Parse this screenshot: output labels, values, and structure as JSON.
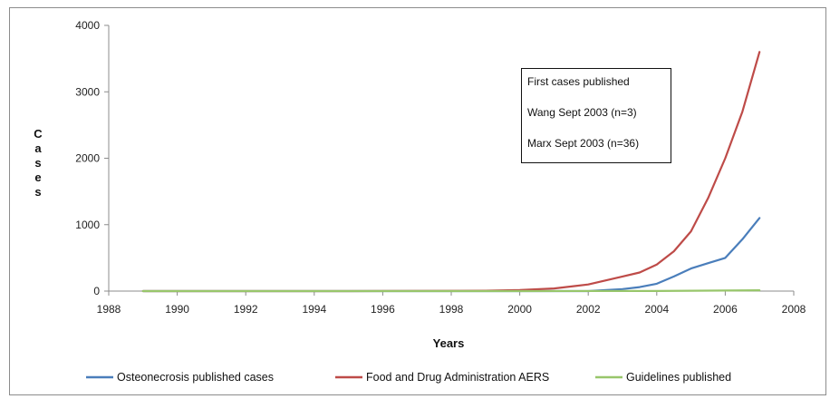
{
  "chart_data": {
    "type": "line",
    "title": "",
    "xlabel": "Years",
    "ylabel": "Cases",
    "xlim": [
      1988,
      2008
    ],
    "ylim": [
      0,
      4000
    ],
    "x_ticks": [
      1988,
      1990,
      1992,
      1994,
      1996,
      1998,
      2000,
      2002,
      2004,
      2006,
      2008
    ],
    "y_ticks": [
      0,
      1000,
      2000,
      3000,
      4000
    ],
    "grid": false,
    "legend_position": "bottom",
    "series": [
      {
        "name": "Osteonecrosis published cases",
        "color": "#4a7ebb",
        "x": [
          1989,
          1995,
          2000,
          2002,
          2003,
          2003.5,
          2004,
          2004.5,
          2005,
          2005.5,
          2006,
          2006.5,
          2007
        ],
        "y": [
          0,
          0,
          0,
          0,
          30,
          60,
          110,
          220,
          340,
          420,
          500,
          780,
          1100
        ]
      },
      {
        "name": "Food and Drug Administration AERS",
        "color": "#be4b48",
        "x": [
          1989,
          1995,
          1999,
          2000,
          2001,
          2002,
          2003,
          2003.5,
          2004,
          2004.5,
          2005,
          2005.5,
          2006,
          2006.5,
          2007
        ],
        "y": [
          0,
          0,
          5,
          15,
          40,
          100,
          220,
          280,
          400,
          600,
          900,
          1400,
          2000,
          2700,
          3600
        ]
      },
      {
        "name": "Guidelines published",
        "color": "#98c66b",
        "x": [
          1989,
          2000,
          2004,
          2005,
          2006,
          2007
        ],
        "y": [
          0,
          0,
          2,
          5,
          8,
          12
        ]
      }
    ],
    "annotation": {
      "lines": [
        "First cases published",
        "Wang Sept 2003 (n=3)",
        "Marx Sept 2003 (n=36)"
      ]
    }
  },
  "legend": {
    "labels": [
      "Osteonecrosis published cases",
      "Food and Drug Administration AERS",
      "Guidelines published"
    ]
  }
}
